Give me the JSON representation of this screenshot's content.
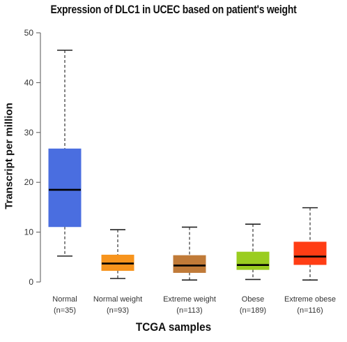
{
  "chart_data": {
    "type": "box",
    "title": "Expression of DLC1 in UCEC based on patient's weight",
    "xlabel": "TCGA samples",
    "ylabel": "Transcript per million",
    "ylim": [
      0,
      50
    ],
    "yticks": [
      0,
      10,
      20,
      30,
      40,
      50
    ],
    "grid": false,
    "legend": "none",
    "categories": [
      {
        "name": "Normal",
        "n": "(n=35)",
        "color": "#4a6ee0",
        "min": 5.2,
        "q1": 11.1,
        "median": 18.5,
        "q3": 26.7,
        "max": 46.5
      },
      {
        "name": "Normal weight",
        "n": "(n=93)",
        "color": "#f7941d",
        "min": 0.7,
        "q1": 2.3,
        "median": 3.7,
        "q3": 5.4,
        "max": 10.5
      },
      {
        "name": "Extreme weight",
        "n": "(n=113)",
        "color": "#c07a38",
        "min": 0.4,
        "q1": 1.9,
        "median": 3.3,
        "q3": 5.3,
        "max": 11.0
      },
      {
        "name": "Obese",
        "n": "(n=189)",
        "color": "#9acd20",
        "min": 0.5,
        "q1": 2.5,
        "median": 3.4,
        "q3": 6.0,
        "max": 11.6
      },
      {
        "name": "Extreme obese",
        "n": "(n=116)",
        "color": "#ff3d14",
        "min": 0.4,
        "q1": 3.5,
        "median": 5.1,
        "q3": 8.0,
        "max": 14.9
      }
    ]
  }
}
